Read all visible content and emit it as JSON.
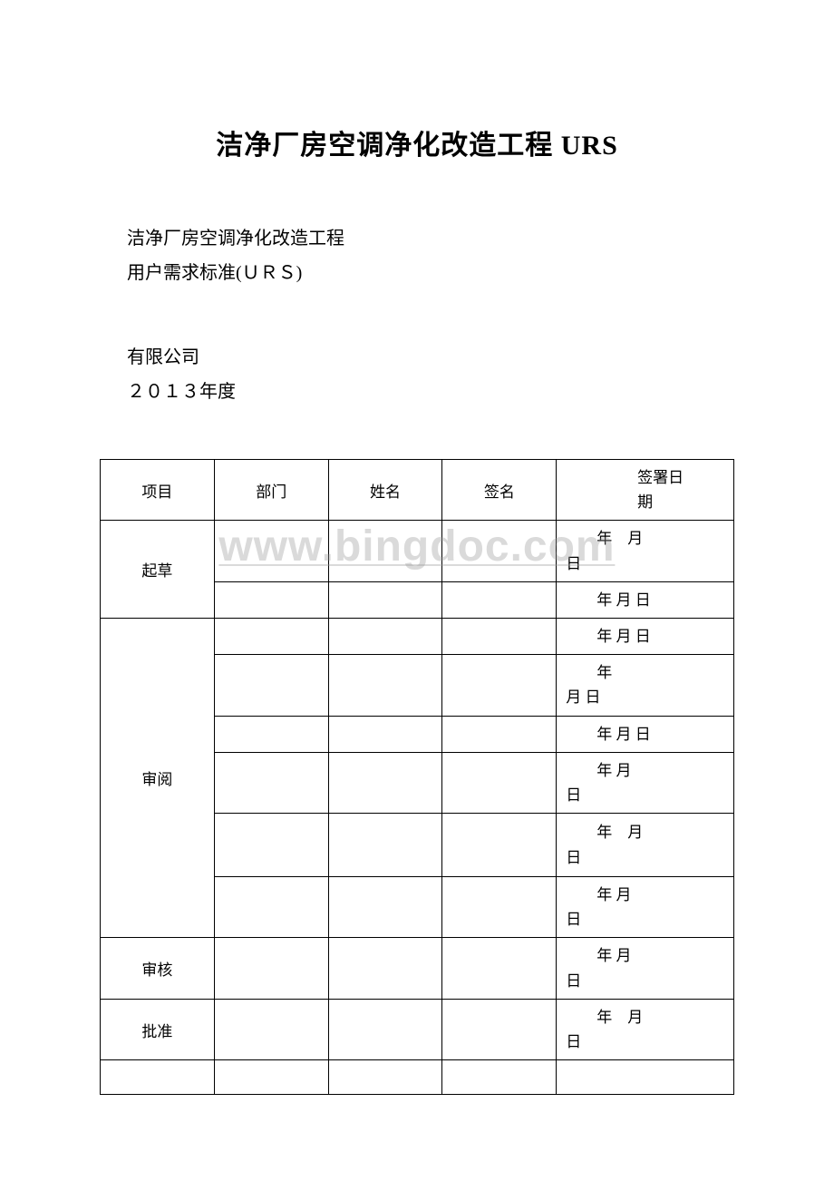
{
  "title": {
    "main": "洁净厂房空调净化改造工程",
    "suffix": "URS"
  },
  "subtitle": {
    "line1": "洁净厂房空调净化改造工程",
    "line2": "用户需求标准(ＵＲＳ)"
  },
  "company": {
    "line1": " 有限公司",
    "line2": "２０１３年度"
  },
  "table": {
    "headers": {
      "col1": "项目",
      "col2": "部门",
      "col3": "姓名",
      "col4": "签名",
      "col5_line1": "签署日",
      "col5_line2": "期"
    },
    "rows": {
      "draft": {
        "label": "起草",
        "date1_line1": "年　月",
        "date1_line2": "日",
        "date2": "年 月 日"
      },
      "review": {
        "label": "审阅",
        "date1": "年 月 日",
        "date2_line1": "年",
        "date2_line2": "月 日",
        "date3": "年 月 日",
        "date4_line1": "年 月",
        "date4_line2": "日",
        "date5_line1": "年　月",
        "date5_line2": "日",
        "date6_line1": "年 月",
        "date6_line2": "日"
      },
      "audit": {
        "label": "审核",
        "date_line1": "年 月",
        "date_line2": "日"
      },
      "approve": {
        "label": "批准",
        "date_line1": "年　月",
        "date_line2": "日"
      }
    }
  },
  "watermark": "www.bingdoc.com",
  "colors": {
    "background": "#ffffff",
    "text": "#000000",
    "border": "#000000",
    "watermark": "rgba(150,150,150,0.35)"
  }
}
